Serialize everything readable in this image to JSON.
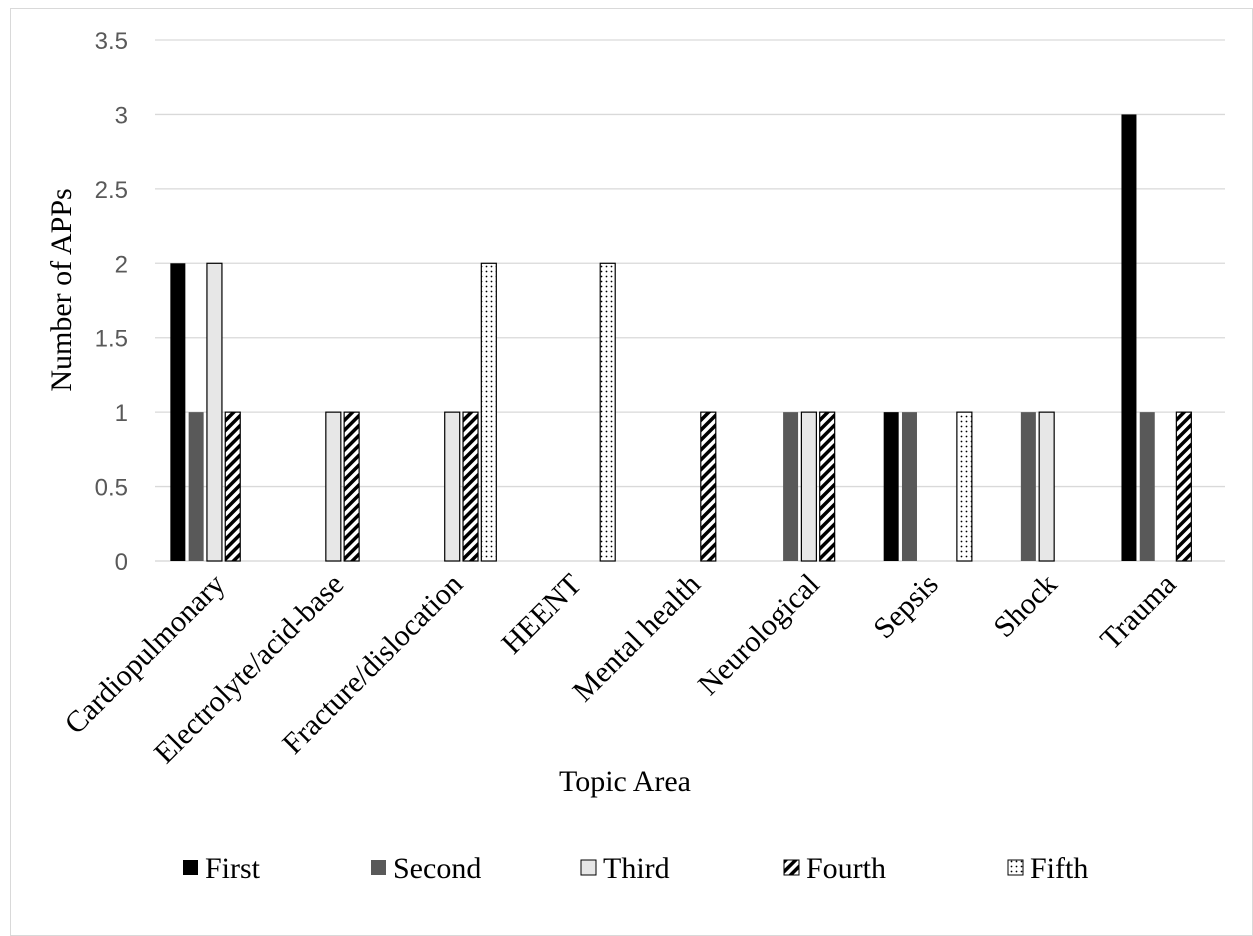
{
  "chart_data": {
    "type": "bar",
    "title": "",
    "xlabel": "Topic Area",
    "ylabel": "Number of APPs",
    "ylim": [
      0,
      3.5
    ],
    "yticks": [
      "0",
      "0.5",
      "1",
      "1.5",
      "2",
      "2.5",
      "3",
      "3.5"
    ],
    "grid": true,
    "legend_position": "bottom",
    "categories": [
      "Cardiopulmonary",
      "Electrolyte/acid-base",
      "Fracture/dislocation",
      "HEENT",
      "Mental health",
      "Neurological",
      "Sepsis",
      "Shock",
      "Trauma"
    ],
    "series": [
      {
        "name": "First",
        "style": "solid-black",
        "color": "#000000",
        "values": [
          2,
          0,
          0,
          0,
          0,
          0,
          1,
          0,
          3
        ]
      },
      {
        "name": "Second",
        "style": "solid-darkgray",
        "color": "#595959",
        "values": [
          1,
          0,
          0,
          0,
          0,
          1,
          1,
          1,
          1
        ]
      },
      {
        "name": "Third",
        "style": "solid-lightgray",
        "color": "#e0e0e0",
        "values": [
          2,
          1,
          1,
          0,
          0,
          1,
          0,
          1,
          0
        ]
      },
      {
        "name": "Fourth",
        "style": "diagonal-hatch",
        "color": "#000000",
        "values": [
          1,
          1,
          1,
          0,
          1,
          1,
          0,
          0,
          1
        ]
      },
      {
        "name": "Fifth",
        "style": "dotted",
        "color": "#000000",
        "values": [
          0,
          0,
          2,
          2,
          0,
          0,
          1,
          0,
          0
        ]
      }
    ]
  }
}
